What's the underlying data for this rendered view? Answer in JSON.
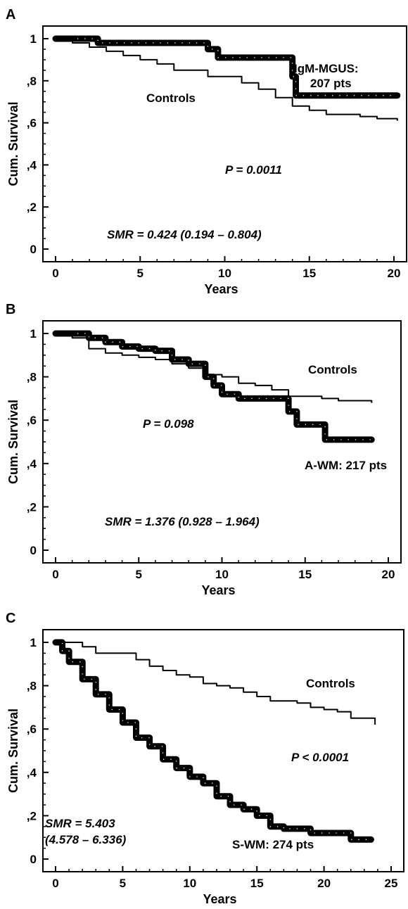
{
  "chart_data": [
    {
      "type": "line",
      "panel": "A",
      "xlabel": "Years",
      "ylabel": "Cum. Survival",
      "xlim": [
        0,
        20
      ],
      "ylim": [
        0,
        1
      ],
      "x_ticks": [
        "0",
        "5",
        "10",
        "15",
        "20"
      ],
      "y_ticks": [
        "0",
        ",2",
        ",4",
        ",6",
        ",8",
        "1"
      ],
      "series": [
        {
          "name": "IgM-MGUS: 207 pts",
          "style": "thick",
          "x": [
            0,
            2.5,
            8.5,
            9.0,
            9.6,
            14.0,
            14.2,
            20.2
          ],
          "y": [
            1.0,
            0.98,
            0.98,
            0.95,
            0.91,
            0.82,
            0.73,
            0.73
          ]
        },
        {
          "name": "Controls",
          "style": "thin",
          "x": [
            0,
            1,
            2,
            3,
            4,
            5,
            6,
            7,
            8,
            9,
            10,
            11,
            12,
            13,
            14,
            15,
            16,
            17,
            18,
            19,
            20.2
          ],
          "y": [
            1.0,
            0.98,
            0.96,
            0.94,
            0.92,
            0.9,
            0.88,
            0.85,
            0.85,
            0.82,
            0.82,
            0.79,
            0.76,
            0.72,
            0.68,
            0.66,
            0.64,
            0.64,
            0.63,
            0.62,
            0.61
          ]
        }
      ],
      "annotations": {
        "series_label_line1": "IgM-MGUS:",
        "series_label_line2": "207 pts",
        "controls_label": "Controls",
        "p_value": "P = 0.0011",
        "smr": "SMR = 0.424  (0.194 – 0.804)"
      }
    },
    {
      "type": "line",
      "panel": "B",
      "xlabel": "Years",
      "ylabel": "Cum. Survival",
      "xlim": [
        0,
        20
      ],
      "ylim": [
        0,
        1
      ],
      "x_ticks": [
        "0",
        "5",
        "10",
        "15",
        "20"
      ],
      "y_ticks": [
        "0",
        ",2",
        ",4",
        ",6",
        ",8",
        "1"
      ],
      "series": [
        {
          "name": "A-WM: 217 pts",
          "style": "thick",
          "x": [
            0,
            0.5,
            1.0,
            2.0,
            3.0,
            4.0,
            5.0,
            6.0,
            7.0,
            8.0,
            9.0,
            9.5,
            10.0,
            11.0,
            12.0,
            13.5,
            14.0,
            14.5,
            16.2,
            19.0
          ],
          "y": [
            1.0,
            1.0,
            1.0,
            0.98,
            0.96,
            0.94,
            0.93,
            0.92,
            0.88,
            0.86,
            0.8,
            0.76,
            0.72,
            0.7,
            0.7,
            0.7,
            0.64,
            0.58,
            0.51,
            0.51
          ]
        },
        {
          "name": "Controls",
          "style": "thin",
          "x": [
            0,
            1,
            2,
            3,
            4,
            5,
            6,
            7,
            8,
            9,
            10,
            11,
            12,
            13,
            14,
            15,
            16,
            17,
            18,
            19
          ],
          "y": [
            1.0,
            0.98,
            0.93,
            0.91,
            0.9,
            0.89,
            0.88,
            0.86,
            0.84,
            0.81,
            0.8,
            0.77,
            0.76,
            0.74,
            0.71,
            0.71,
            0.7,
            0.69,
            0.69,
            0.68
          ]
        }
      ],
      "annotations": {
        "series_label": "A-WM: 217 pts",
        "controls_label": "Controls",
        "p_value": "P =  0.098",
        "smr": "SMR = 1.376  (0.928 – 1.964)"
      }
    },
    {
      "type": "line",
      "panel": "C",
      "xlabel": "Years",
      "ylabel": "Cum. Survival",
      "xlim": [
        0,
        25
      ],
      "ylim": [
        0,
        1
      ],
      "x_ticks": [
        "0",
        "5",
        "10",
        "15",
        "20",
        "25"
      ],
      "y_ticks": [
        "0",
        ",2",
        ",4",
        ",6",
        ",8",
        "1"
      ],
      "series": [
        {
          "name": "S-WM: 274 pts",
          "style": "thick",
          "x": [
            0,
            0.5,
            1.0,
            2.0,
            3.0,
            4.0,
            5.0,
            6.0,
            7.0,
            8.0,
            9.0,
            10.0,
            11.0,
            12.0,
            13.0,
            14.0,
            15.0,
            16.0,
            17.0,
            18.0,
            19.0,
            20.0,
            21.0,
            22.0,
            23.5
          ],
          "y": [
            1.0,
            0.96,
            0.91,
            0.83,
            0.76,
            0.69,
            0.63,
            0.56,
            0.52,
            0.46,
            0.42,
            0.38,
            0.35,
            0.29,
            0.25,
            0.23,
            0.2,
            0.15,
            0.14,
            0.14,
            0.12,
            0.12,
            0.12,
            0.09,
            0.09
          ]
        },
        {
          "name": "Controls",
          "style": "thin",
          "x": [
            0,
            1,
            2,
            3,
            4,
            5,
            6,
            7,
            8,
            9,
            10,
            11,
            12,
            13,
            14,
            15,
            16,
            17,
            18,
            19,
            20,
            21,
            22,
            23,
            23.8
          ],
          "y": [
            1.0,
            1.0,
            0.98,
            0.95,
            0.95,
            0.95,
            0.92,
            0.89,
            0.87,
            0.85,
            0.84,
            0.81,
            0.8,
            0.79,
            0.77,
            0.75,
            0.73,
            0.73,
            0.72,
            0.7,
            0.69,
            0.68,
            0.65,
            0.65,
            0.62
          ]
        }
      ],
      "annotations": {
        "series_label": "S-WM: 274 pts",
        "controls_label": "Controls",
        "p_value": "P < 0.0001",
        "smr_line1": "SMR  =  5.403",
        "smr_line2": "(4.578 – 6.336)"
      }
    }
  ]
}
